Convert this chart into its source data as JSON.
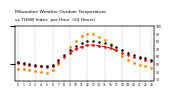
{
  "title_line1": "Milwaukee Weather Outdoor Temperature",
  "title_line2": "vs THSW Index  per Hour  (24 Hours)",
  "title_fontsize": 3.2,
  "background_color": "#ffffff",
  "hours": [
    0,
    1,
    2,
    3,
    4,
    5,
    6,
    7,
    8,
    9,
    10,
    11,
    12,
    13,
    14,
    15,
    16,
    17,
    18,
    19,
    20,
    21,
    22,
    23
  ],
  "outdoor_temp": [
    52,
    50,
    49,
    48,
    47,
    46,
    48,
    53,
    59,
    65,
    70,
    73,
    75,
    75,
    74,
    73,
    71,
    68,
    65,
    62,
    60,
    58,
    56,
    54
  ],
  "thsw_index": [
    44,
    43,
    42,
    41,
    40,
    39,
    42,
    50,
    61,
    72,
    81,
    87,
    90,
    89,
    86,
    82,
    76,
    68,
    61,
    56,
    52,
    49,
    47,
    45
  ],
  "black_dots": [
    53,
    51,
    50,
    49,
    48,
    47,
    49,
    55,
    62,
    68,
    74,
    78,
    80,
    80,
    79,
    78,
    75,
    72,
    68,
    65,
    62,
    60,
    58,
    56
  ],
  "red_dash_hours": [
    9,
    10,
    11,
    12,
    13,
    14,
    15,
    16,
    17
  ],
  "red_dash_vals": [
    65,
    70,
    73,
    75,
    75,
    74,
    73,
    71,
    68
  ],
  "outdoor_temp_color": "#ff0000",
  "thsw_color": "#ff8c00",
  "black_color": "#000000",
  "grid_color": "#999999",
  "ylim": [
    28,
    100
  ],
  "yticks_right": [
    30,
    40,
    50,
    60,
    70,
    80,
    90,
    100
  ],
  "ytick_labels_right": [
    "30",
    "40",
    "50",
    "60",
    "70",
    "80",
    "90",
    "100"
  ],
  "vgrid_positions": [
    0,
    3,
    6,
    9,
    12,
    15,
    18,
    21,
    23
  ],
  "marker_size_orange": 2.0,
  "marker_size_red": 1.8,
  "marker_size_black": 1.6
}
